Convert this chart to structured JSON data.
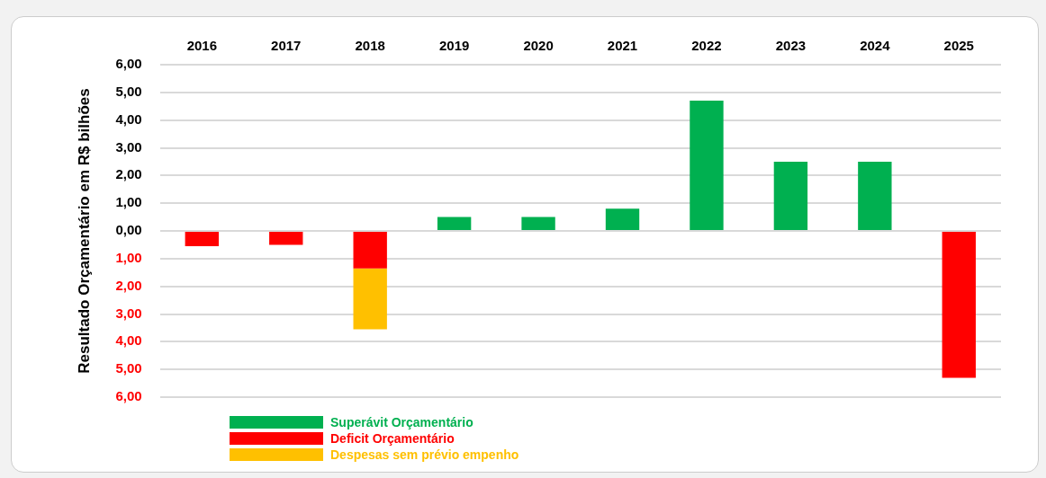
{
  "chart_data": {
    "type": "bar",
    "stacked": true,
    "ylabel": "Resultado Orçamentário em R$ bilhões",
    "categories": [
      "2016",
      "2017",
      "2018",
      "2019",
      "2020",
      "2021",
      "2022",
      "2023",
      "2024",
      "2025"
    ],
    "series": [
      {
        "name": "Superávit Orçamentário",
        "color": "#00b050",
        "values": [
          null,
          null,
          null,
          0.5,
          0.5,
          0.8,
          4.7,
          2.5,
          2.5,
          null
        ]
      },
      {
        "name": "Deficit Orçamentário",
        "color": "#ff0000",
        "values": [
          -0.55,
          -0.5,
          -1.35,
          null,
          null,
          null,
          null,
          null,
          null,
          -5.3
        ]
      },
      {
        "name": "Despesas sem prévio empenho",
        "color": "#ffc000",
        "values": [
          null,
          null,
          -2.2,
          null,
          null,
          null,
          null,
          null,
          null,
          null
        ]
      }
    ],
    "ylim": [
      -6,
      6
    ],
    "yticks": [
      {
        "value": -6,
        "label": "6,00"
      },
      {
        "value": -5,
        "label": "5,00"
      },
      {
        "value": -4,
        "label": "4,00"
      },
      {
        "value": -3,
        "label": "3,00"
      },
      {
        "value": -2,
        "label": "2,00"
      },
      {
        "value": -1,
        "label": "1,00"
      },
      {
        "value": 0,
        "label": "0,00"
      },
      {
        "value": 1,
        "label": "1,00"
      },
      {
        "value": 2,
        "label": "2,00"
      },
      {
        "value": 3,
        "label": "3,00"
      },
      {
        "value": 4,
        "label": "4,00"
      },
      {
        "value": 5,
        "label": "5,00"
      },
      {
        "value": 6,
        "label": "6,00"
      }
    ],
    "grid": "y",
    "legend": "bottom left"
  }
}
